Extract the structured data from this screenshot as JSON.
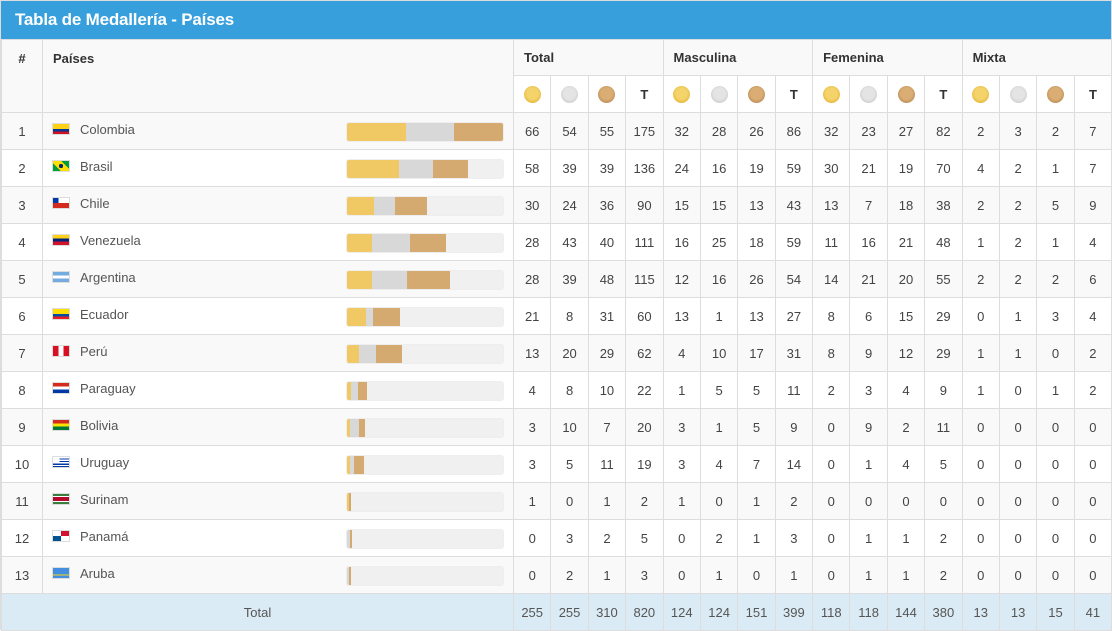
{
  "title": "Tabla de Medallería - Países",
  "headers": {
    "num": "#",
    "country": "Países",
    "groups": [
      "Total",
      "Masculina",
      "Femenina",
      "Mixta"
    ],
    "total_col": "T"
  },
  "colors": {
    "gold": "#f0c964",
    "silver": "#d8d8d8",
    "bronze": "#d4aa70",
    "header": "#379fdc"
  },
  "rows": [
    {
      "rank": "1",
      "name": "Colombia",
      "flag": "colombia",
      "v": [
        66,
        54,
        55,
        175,
        32,
        28,
        26,
        86,
        32,
        23,
        27,
        82,
        2,
        3,
        2,
        7
      ]
    },
    {
      "rank": "2",
      "name": "Brasil",
      "flag": "brasil",
      "v": [
        58,
        39,
        39,
        136,
        24,
        16,
        19,
        59,
        30,
        21,
        19,
        70,
        4,
        2,
        1,
        7
      ]
    },
    {
      "rank": "3",
      "name": "Chile",
      "flag": "chile",
      "v": [
        30,
        24,
        36,
        90,
        15,
        15,
        13,
        43,
        13,
        7,
        18,
        38,
        2,
        2,
        5,
        9
      ]
    },
    {
      "rank": "4",
      "name": "Venezuela",
      "flag": "venezuela",
      "v": [
        28,
        43,
        40,
        111,
        16,
        25,
        18,
        59,
        11,
        16,
        21,
        48,
        1,
        2,
        1,
        4
      ]
    },
    {
      "rank": "5",
      "name": "Argentina",
      "flag": "argentina",
      "v": [
        28,
        39,
        48,
        115,
        12,
        16,
        26,
        54,
        14,
        21,
        20,
        55,
        2,
        2,
        2,
        6
      ]
    },
    {
      "rank": "6",
      "name": "Ecuador",
      "flag": "ecuador",
      "v": [
        21,
        8,
        31,
        60,
        13,
        1,
        13,
        27,
        8,
        6,
        15,
        29,
        0,
        1,
        3,
        4
      ]
    },
    {
      "rank": "7",
      "name": "Perú",
      "flag": "peru",
      "v": [
        13,
        20,
        29,
        62,
        4,
        10,
        17,
        31,
        8,
        9,
        12,
        29,
        1,
        1,
        0,
        2
      ]
    },
    {
      "rank": "8",
      "name": "Paraguay",
      "flag": "paraguay",
      "v": [
        4,
        8,
        10,
        22,
        1,
        5,
        5,
        11,
        2,
        3,
        4,
        9,
        1,
        0,
        1,
        2
      ]
    },
    {
      "rank": "9",
      "name": "Bolivia",
      "flag": "bolivia",
      "v": [
        3,
        10,
        7,
        20,
        3,
        1,
        5,
        9,
        0,
        9,
        2,
        11,
        0,
        0,
        0,
        0
      ]
    },
    {
      "rank": "10",
      "name": "Uruguay",
      "flag": "uruguay",
      "v": [
        3,
        5,
        11,
        19,
        3,
        4,
        7,
        14,
        0,
        1,
        4,
        5,
        0,
        0,
        0,
        0
      ]
    },
    {
      "rank": "11",
      "name": "Surinam",
      "flag": "surinam",
      "v": [
        1,
        0,
        1,
        2,
        1,
        0,
        1,
        2,
        0,
        0,
        0,
        0,
        0,
        0,
        0,
        0
      ]
    },
    {
      "rank": "12",
      "name": "Panamá",
      "flag": "panama",
      "v": [
        0,
        3,
        2,
        5,
        0,
        2,
        1,
        3,
        0,
        1,
        1,
        2,
        0,
        0,
        0,
        0
      ]
    },
    {
      "rank": "13",
      "name": "Aruba",
      "flag": "aruba",
      "v": [
        0,
        2,
        1,
        3,
        0,
        1,
        0,
        1,
        0,
        1,
        1,
        2,
        0,
        0,
        0,
        0
      ]
    }
  ],
  "footer": {
    "label": "Total",
    "v": [
      255,
      255,
      310,
      820,
      124,
      124,
      151,
      399,
      118,
      118,
      144,
      380,
      13,
      13,
      15,
      41
    ]
  }
}
